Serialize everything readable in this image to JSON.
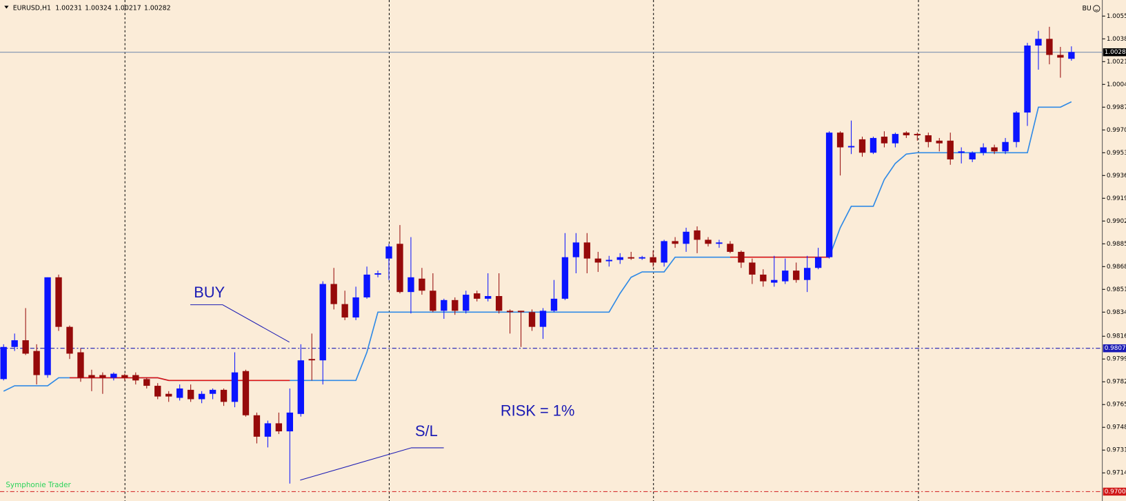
{
  "chart_data": {
    "type": "candlestick",
    "symbol": "EURUSD,H1",
    "quote": [
      1.00231,
      1.00324,
      1.00217,
      1.00282
    ],
    "indicator_label": "BU",
    "watermark": "Symphonie Trader",
    "annotations": {
      "buy": "BUY",
      "stop_loss": "S/L",
      "risk": "RISK = 1%"
    },
    "up_color": "#0a14ff",
    "down_color": "#960a0a",
    "open": [
      0.9784,
      0.9808,
      0.9813,
      0.9805,
      0.9787,
      0.986,
      0.9823,
      0.9804,
      0.9787,
      0.9787,
      0.9785,
      0.9787,
      0.9787,
      0.9784,
      0.9779,
      0.9773,
      0.977,
      0.9776,
      0.9769,
      0.9773,
      0.9776,
      0.9767,
      0.979,
      0.9757,
      0.9741,
      0.9751,
      0.9745,
      0.9758,
      0.9799,
      0.9798,
      0.9855,
      0.984,
      0.983,
      0.9845,
      0.9862,
      0.9874,
      0.9885,
      0.9849,
      0.9859,
      0.985,
      0.9835,
      0.9843,
      0.9835,
      0.9848,
      0.9844,
      0.9846,
      0.9835,
      0.9835,
      0.9834,
      0.9823,
      0.9835,
      0.9844,
      0.9875,
      0.9886,
      0.9874,
      0.9872,
      0.9873,
      0.9875,
      0.9874,
      0.9875,
      0.9871,
      0.9887,
      0.9885,
      0.9895,
      0.9888,
      0.9885,
      0.9885,
      0.9879,
      0.9871,
      0.9862,
      0.9856,
      0.9857,
      0.9865,
      0.9858,
      0.9867,
      0.9875,
      0.9968,
      0.9957,
      0.9963,
      0.9953,
      0.9965,
      0.996,
      0.9968,
      0.9967,
      0.9966,
      0.9962,
      0.9962,
      0.9953,
      0.9948,
      0.9953,
      0.9957,
      0.9954,
      0.9961,
      0.9983,
      1.0033,
      1.0038,
      1.0026,
      1.00231
    ],
    "high": [
      0.981,
      0.9818,
      0.9837,
      0.981,
      0.986,
      0.9862,
      0.9824,
      0.9807,
      0.9791,
      0.9789,
      0.9789,
      0.9788,
      0.9789,
      0.9785,
      0.9781,
      0.9775,
      0.978,
      0.978,
      0.9775,
      0.9777,
      0.9777,
      0.9804,
      0.9791,
      0.9759,
      0.9753,
      0.9759,
      0.9777,
      0.981,
      0.9818,
      0.9857,
      0.9867,
      0.985,
      0.9853,
      0.9868,
      0.9865,
      0.9885,
      0.9899,
      0.989,
      0.9867,
      0.9863,
      0.9844,
      0.9845,
      0.985,
      0.985,
      0.9863,
      0.9863,
      0.9836,
      0.9835,
      0.9836,
      0.9837,
      0.9858,
      0.9893,
      0.9893,
      0.9893,
      0.9879,
      0.9876,
      0.9878,
      0.9879,
      0.9876,
      0.988,
      0.9888,
      0.989,
      0.9897,
      0.9898,
      0.989,
      0.9888,
      0.9887,
      0.988,
      0.9874,
      0.9866,
      0.9876,
      0.9874,
      0.9871,
      0.9876,
      0.9882,
      0.9969,
      0.9969,
      0.9977,
      0.9965,
      0.9965,
      0.9969,
      0.9968,
      0.9969,
      0.9968,
      0.9968,
      0.9964,
      0.9968,
      0.9957,
      0.9954,
      0.996,
      0.9959,
      0.9964,
      0.9984,
      1.0035,
      1.0044,
      1.0047,
      1.0032,
      1.00324
    ],
    "low": [
      0.9783,
      0.9805,
      0.9802,
      0.978,
      0.9785,
      0.982,
      0.9799,
      0.9782,
      0.9775,
      0.9773,
      0.9783,
      0.9783,
      0.978,
      0.9777,
      0.9769,
      0.9767,
      0.9768,
      0.9767,
      0.9766,
      0.9769,
      0.9764,
      0.9763,
      0.9756,
      0.9736,
      0.9733,
      0.9743,
      0.9706,
      0.9756,
      0.9783,
      0.978,
      0.9836,
      0.9828,
      0.9828,
      0.9844,
      0.986,
      0.9858,
      0.9848,
      0.9833,
      0.9847,
      0.9834,
      0.9829,
      0.9832,
      0.9833,
      0.9842,
      0.9842,
      0.9833,
      0.9818,
      0.9808,
      0.982,
      0.9814,
      0.9834,
      0.9843,
      0.9863,
      0.9863,
      0.9864,
      0.9868,
      0.987,
      0.9873,
      0.9873,
      0.9868,
      0.9868,
      0.9882,
      0.9879,
      0.9878,
      0.9883,
      0.9882,
      0.9878,
      0.9867,
      0.9855,
      0.9853,
      0.9853,
      0.9855,
      0.9856,
      0.9849,
      0.9866,
      0.9874,
      0.9936,
      0.9952,
      0.995,
      0.9952,
      0.9957,
      0.9957,
      0.9964,
      0.9962,
      0.9957,
      0.9954,
      0.9944,
      0.9945,
      0.9946,
      0.9951,
      0.9952,
      0.9952,
      0.9957,
      0.9973,
      1.0015,
      1.0019,
      1.0009,
      1.00217
    ],
    "close": [
      0.9808,
      0.9813,
      0.9803,
      0.9787,
      0.986,
      0.9823,
      0.9803,
      0.9785,
      0.9785,
      0.9785,
      0.9788,
      0.9785,
      0.9783,
      0.9779,
      0.9771,
      0.9771,
      0.9777,
      0.9769,
      0.9773,
      0.9776,
      0.9767,
      0.9789,
      0.9757,
      0.9741,
      0.9751,
      0.9745,
      0.9759,
      0.9798,
      0.9798,
      0.9855,
      0.984,
      0.983,
      0.9845,
      0.9862,
      0.9863,
      0.9883,
      0.9849,
      0.986,
      0.985,
      0.9835,
      0.9843,
      0.9835,
      0.9847,
      0.9844,
      0.9846,
      0.9835,
      0.9834,
      0.9834,
      0.9823,
      0.9835,
      0.9844,
      0.9875,
      0.9886,
      0.9874,
      0.9871,
      0.9873,
      0.9875,
      0.9874,
      0.9875,
      0.9871,
      0.9887,
      0.9885,
      0.9894,
      0.9888,
      0.9885,
      0.9886,
      0.9879,
      0.9871,
      0.9862,
      0.9857,
      0.9858,
      0.9865,
      0.9858,
      0.9867,
      0.9875,
      0.9968,
      0.9957,
      0.9958,
      0.9953,
      0.9964,
      0.996,
      0.9967,
      0.9966,
      0.9966,
      0.9961,
      0.996,
      0.9948,
      0.9954,
      0.9953,
      0.9957,
      0.9954,
      0.9961,
      0.9983,
      1.0033,
      1.0038,
      1.0026,
      1.0024,
      1.00282
    ],
    "lines": [
      {
        "color": "#2f8ae6",
        "values": [
          0.9775,
          0.9779,
          0.9779,
          0.9779,
          0.9779,
          0.9785,
          0.9785,
          0.9785,
          0.9785,
          0.9785,
          0.9785,
          0.9785,
          0.9785,
          0.9785,
          0.9785,
          0.9783,
          0.9783,
          0.9783,
          0.9783,
          0.9783,
          0.9783,
          0.9783,
          0.9783,
          0.9783,
          0.9783,
          0.9783,
          0.9783,
          0.9783,
          0.9783,
          0.9783,
          0.9783,
          0.9783,
          0.9783,
          0.9804,
          0.9834,
          0.9834,
          0.9834,
          0.9834,
          0.9834,
          0.9834,
          0.9834,
          0.9834,
          0.9834,
          0.9834,
          0.9834,
          0.9834,
          0.9834,
          0.9834,
          0.9834,
          0.9834,
          0.9834,
          0.9834,
          0.9834,
          0.9834,
          0.9834,
          0.9834,
          0.9848,
          0.986,
          0.9864,
          0.9864,
          0.9864,
          0.9875,
          0.9875,
          0.9875,
          0.9875,
          0.9875,
          0.9875,
          0.9875,
          0.9875,
          0.9875,
          0.9875,
          0.9875,
          0.9875,
          0.9875,
          0.9875,
          0.9875,
          0.9897,
          0.9913,
          0.9913,
          0.9913,
          0.9933,
          0.9945,
          0.9952,
          0.9953,
          0.9953,
          0.9953,
          0.9953,
          0.9953,
          0.9953,
          0.9953,
          0.9953,
          0.9953,
          0.9953,
          0.9953,
          0.9987,
          0.9987,
          0.9987,
          0.9991
        ]
      },
      {
        "color": "#dc1414",
        "values": [
          null,
          null,
          null,
          null,
          null,
          null,
          0.9785,
          0.9785,
          0.9785,
          0.9785,
          0.9785,
          0.9785,
          0.9785,
          0.9785,
          0.9785,
          0.9783,
          0.9783,
          0.9783,
          0.9783,
          0.9783,
          0.9783,
          0.9783,
          0.9783,
          0.9783,
          0.9783,
          0.9783,
          0.9783,
          null,
          null,
          null,
          null,
          null,
          null,
          null,
          null,
          null,
          null,
          null,
          null,
          null,
          null,
          null,
          null,
          null,
          null,
          null,
          null,
          null,
          null,
          null,
          null,
          null,
          null,
          null,
          null,
          null,
          null,
          null,
          null,
          null,
          null,
          null,
          null,
          null,
          null,
          null,
          0.9875,
          0.9875,
          0.9875,
          0.9875,
          0.9875,
          0.9875,
          0.9875,
          0.9875,
          0.9875,
          0.9875,
          null,
          null,
          null,
          null,
          null,
          null,
          null,
          null,
          null,
          null,
          null,
          null,
          null,
          null,
          null,
          null,
          null,
          null,
          null,
          null,
          null,
          null
        ]
      }
    ],
    "levels": [
      {
        "value": 1.0028,
        "color": "#7d90b0",
        "style": "solid",
        "label_bg": "#000000"
      },
      {
        "value": 0.9807,
        "color": "#1a1ab4",
        "style": "dashdot",
        "label_bg": "#1a1ab4"
      },
      {
        "value": 0.97,
        "value_label": "0.9700",
        "color": "#d01818",
        "style": "dashdot",
        "label_bg": "#d01818"
      }
    ],
    "ylim": [
      0.9693,
      1.0067
    ],
    "yticks": [
      1.0055,
      1.0038,
      1.0021,
      1.0004,
      0.9987,
      {
        "value": 0.997,
        "label": "0.9970"
      },
      0.9953,
      0.9936,
      0.9919,
      0.9902,
      0.9885,
      0.9868,
      0.9851,
      0.9834,
      0.9816,
      0.9799,
      0.9782,
      0.9765,
      0.9748,
      0.9731,
      0.9714
    ],
    "grid": false,
    "background": "#fbecd8"
  }
}
